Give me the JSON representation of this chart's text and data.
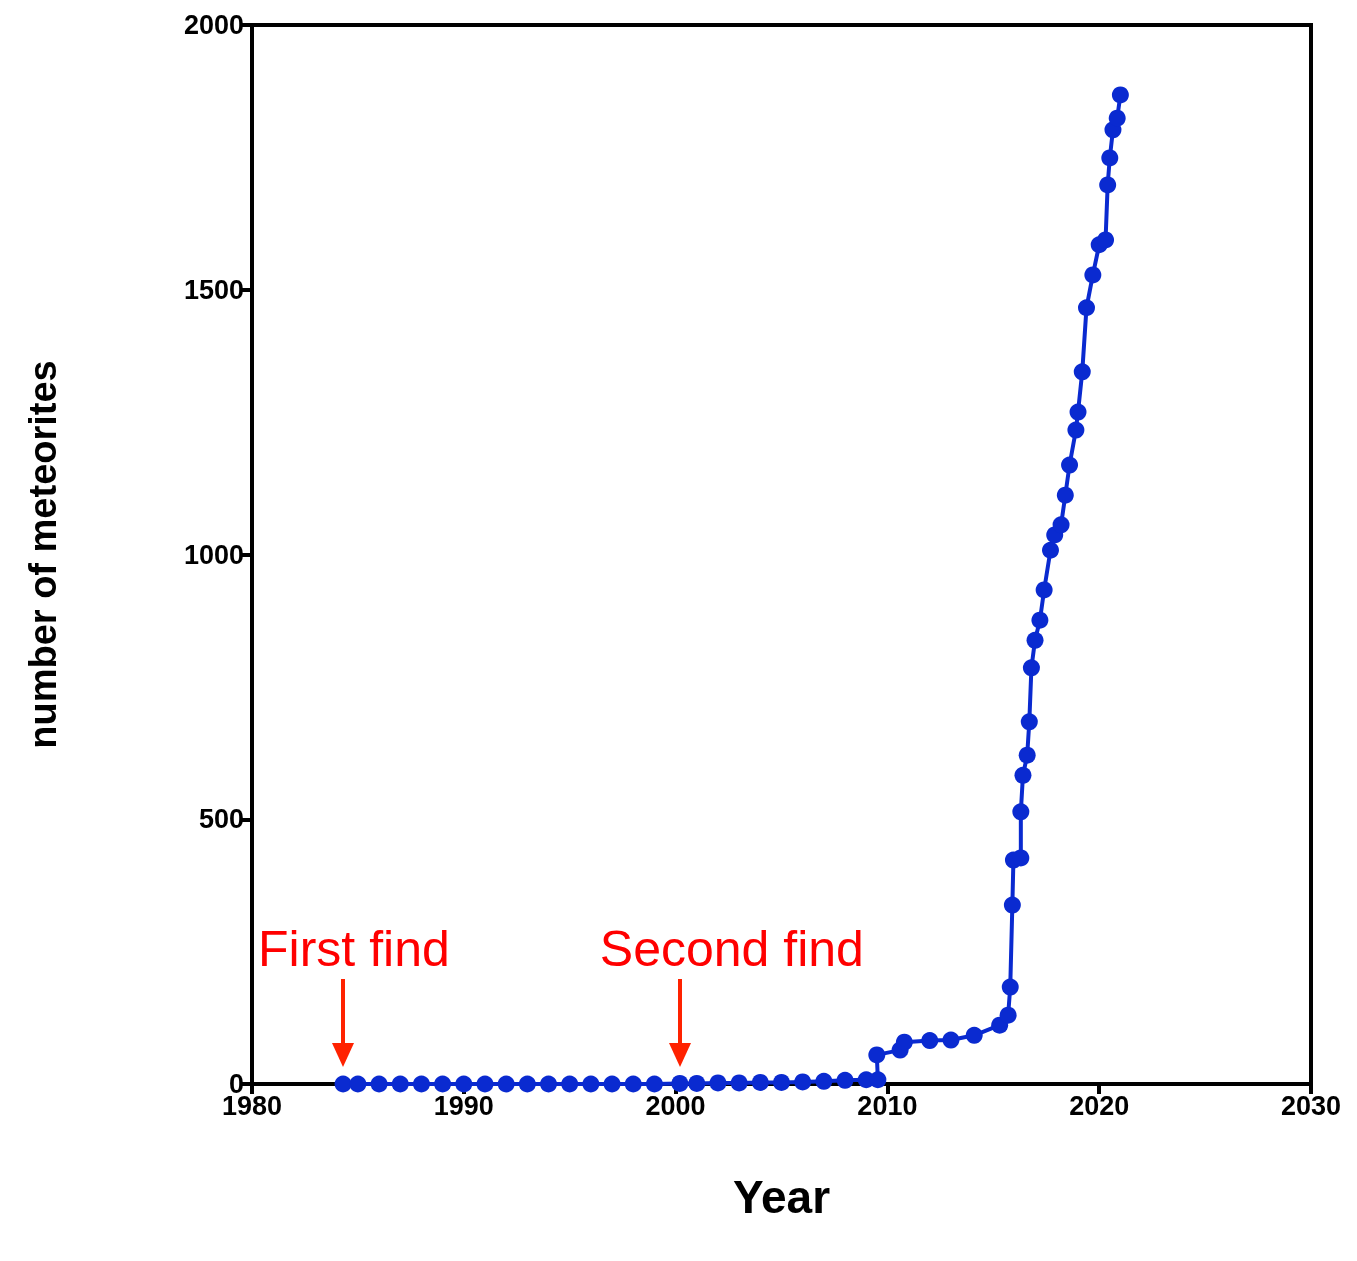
{
  "chart_data": {
    "type": "line",
    "xlabel": "Year",
    "ylabel": "number of meteorites",
    "x": [
      1984.3,
      1985,
      1986,
      1987,
      1988,
      1989,
      1990,
      1991,
      1992,
      1993,
      1994,
      1995,
      1996,
      1997,
      1998,
      1999,
      2000.2,
      2001,
      2002,
      2003,
      2004,
      2005,
      2006,
      2007,
      2008,
      2009,
      2009.55,
      2009.5,
      2010.6,
      2010.8,
      2012,
      2013,
      2014.1,
      2015.3,
      2015.7,
      2015.8,
      2015.9,
      2015.95,
      2016.3,
      2016.3,
      2016.4,
      2016.6,
      2016.7,
      2016.8,
      2016.97,
      2017.2,
      2017.4,
      2017.7,
      2017.9,
      2018.2,
      2018.4,
      2018.6,
      2018.9,
      2019.0,
      2019.2,
      2019.4,
      2019.7,
      2020.0,
      2020.3,
      2020.4,
      2020.5,
      2020.65,
      2020.85,
      2021.0
    ],
    "series": [
      {
        "color": "#0a2ad0",
        "values": [
          0,
          0,
          0,
          0,
          0,
          0,
          0,
          0,
          0,
          0,
          0,
          0,
          0,
          0,
          0,
          0,
          1,
          1,
          2,
          2,
          3,
          3,
          4,
          5,
          7,
          8,
          8,
          55,
          64,
          79,
          82,
          83,
          92,
          111,
          130,
          183,
          338,
          423,
          427,
          514,
          583,
          621,
          684,
          786,
          838,
          876,
          933,
          1008,
          1037,
          1056,
          1112,
          1169,
          1235,
          1269,
          1345,
          1466,
          1528,
          1585,
          1594,
          1698,
          1749,
          1802,
          1824,
          1868
        ]
      }
    ],
    "xlim": [
      1980,
      2030
    ],
    "xticks": [
      1980,
      1990,
      2000,
      2010,
      2020,
      2030
    ],
    "ylim": [
      0,
      2000
    ],
    "yticks": [
      0,
      500,
      1000,
      1500,
      2000
    ],
    "annotations": [
      {
        "text": "First find",
        "x": 1984.3,
        "y": 0
      },
      {
        "text": "Second find",
        "x": 2000.2,
        "y": 0
      }
    ],
    "marker": "circle",
    "line_style": "solid",
    "grid": false
  }
}
